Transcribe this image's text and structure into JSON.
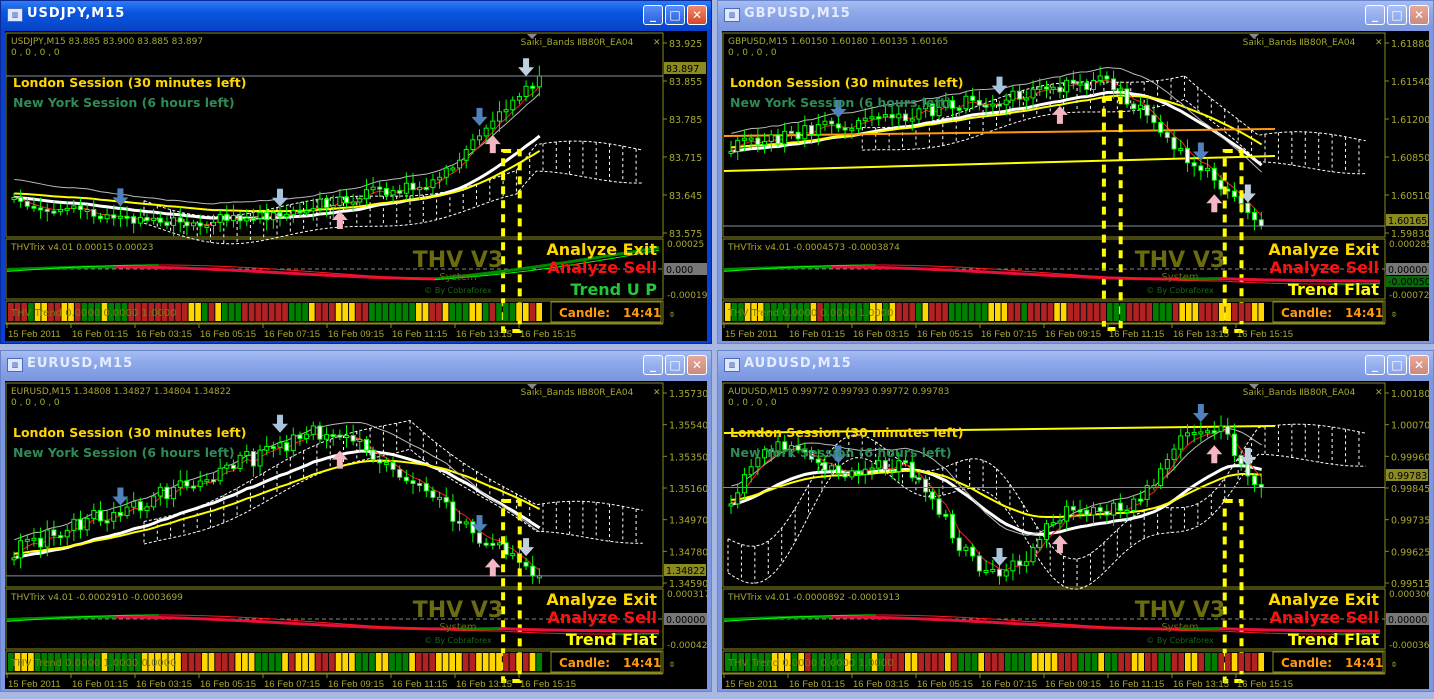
{
  "colors": {
    "bull": "#00ff00",
    "bear": "#ffffff",
    "axis_text": "#a8a830",
    "frame": "#8a8a20",
    "london": "#ffd700",
    "newyork": "#2e8b57",
    "exit": "#ffd700",
    "sell": "#ff1010",
    "trend_up": "#22c83a",
    "trend_flat": "#ffff00",
    "candle_timer": "#ff9a10",
    "trend_red": "#b22222",
    "trend_green": "#008000",
    "trend_yellow": "#ffd700"
  },
  "common": {
    "london_session": "London Session (30 minutes left)",
    "newyork_session": "New York Session (6 hours left)",
    "indicator_name": "Saiki_Bands ⅡB80R_EA04",
    "analyze_exit": "Analyze Exit",
    "analyze_sell": "Analyze Sell",
    "watermark_main": "THV V3",
    "watermark_sub": "System",
    "watermark_credit": "© By Cobraforex",
    "candle_label": "Candle:",
    "candle_time": "14:41",
    "buffers": "0 , 0 , 0 , 0",
    "time_labels": [
      "15 Feb 2011",
      "16 Feb 01:15",
      "16 Feb 03:15",
      "16 Feb 05:15",
      "16 Feb 07:15",
      "16 Feb 09:15",
      "16 Feb 11:15",
      "16 Feb 13:15",
      "16 Feb 15:15"
    ],
    "window_buttons": {
      "minimize": "_",
      "maximize": "□",
      "close": "✕"
    }
  },
  "windows": [
    {
      "title": "USDJPY,M15",
      "active": true,
      "ohlc": "USDJPY,M15  83.885 83.900 83.885 83.897",
      "price_ticks": [
        "83.925",
        "83.855",
        "83.785",
        "83.715",
        "83.645",
        "83.575"
      ],
      "current_price": "83.897",
      "trix": "THVTrix v4.01 0.00015 0.00023",
      "trix_ticks": [
        "0.00025",
        "-0.00019"
      ],
      "trix_zero": "0.000",
      "trend_label": "Trend U P",
      "trend_state": "up",
      "thv_trend": "THV Trend 0.0000 0.0000 1.0000",
      "trend_bars": "RRRGYYRRYYRGGGYGGGRRRRRRRRRYYGRYGGGRRRRRRRGGGYRRRYYYRRGGGGGGGYYRRYGGGYYGRGGGYYRY"
    },
    {
      "title": "GBPUSD,M15",
      "active": false,
      "ohlc": "GBPUSD,M15  1.60150 1.60180 1.60135 1.60165",
      "price_ticks": [
        "1.61880",
        "1.61540",
        "1.61200",
        "1.60850",
        "1.60510",
        "1.59830"
      ],
      "current_price": "1.60165",
      "trix": "THVTrix v4.01 -0.0004573 -0.0003874",
      "trix_ticks": [
        "0.000285",
        "-0.00072"
      ],
      "trix_zero": "0.00000",
      "trix_signal": "-0.00050",
      "trend_label": "Trend Flat",
      "trend_state": "flat",
      "thv_trend": "THV Trend 0.0000 0.0000 1.0000",
      "trend_bars": "YGGYYYGGGGGGGYRGGGGGGGYYGYRRRGYRRRGGGGGGYYYRRGRRRRYYRRRRRRGGGRRRRGGGRYYYRRRYYRRRYY"
    },
    {
      "title": "EURUSD,M15",
      "active": false,
      "ohlc": "EURUSD,M15  1.34808 1.34827 1.34804 1.34822",
      "price_ticks": [
        "1.35730",
        "1.35540",
        "1.35350",
        "1.35160",
        "1.34970",
        "1.34780",
        "1.34590"
      ],
      "current_price": "1.34822",
      "trix": "THVTrix v4.01 -0.0002910 -0.0003699",
      "trix_ticks": [
        "0.000317",
        "-0.00042"
      ],
      "trix_zero": "0.00000",
      "trend_label": "Trend Flat",
      "trend_state": "flat",
      "thv_trend": "THV Trend 0.0000 1.0000 0.0000",
      "trend_bars": "GYYYGGGGGGGGGGYGGGGGYYYYYYRRRYYRRRYYYGGGGYRYYYRRRYYYGGGYYGGGYRRRYYYYRRYYYYRRYRYG"
    },
    {
      "title": "AUDUSD,M15",
      "active": false,
      "ohlc": "AUDUSD,M15  0.99772 0.99793 0.99772 0.99783",
      "price_ticks": [
        "1.00180",
        "1.00070",
        "0.99960",
        "0.99845",
        "0.99735",
        "0.99625",
        "0.99515"
      ],
      "current_price": "0.99783",
      "trix": "THVTrix v4.01 -0.0000892 -0.0001913",
      "trix_ticks": [
        "0.000306",
        "-0.00036"
      ],
      "trix_zero": "0.00000",
      "trend_label": "Trend Flat",
      "trend_state": "flat",
      "thv_trend": "THV Trend 0.0000 0.0000 1.0000",
      "trend_bars": "GGGGGGGYYYGYRGGGGGYGGGYGRRRYYRRRRYRGGGYRRRGGGGYYYYRRRGGGYGGRRYYRRGGRRYYRGGRRYRRRY"
    }
  ]
}
